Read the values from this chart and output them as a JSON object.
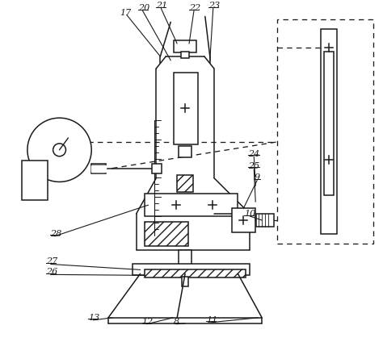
{
  "bg_color": "#ffffff",
  "line_color": "#1a1a1a",
  "figsize": [
    4.74,
    4.19
  ],
  "dpi": 100,
  "font_size": 8,
  "lw": 1.1
}
